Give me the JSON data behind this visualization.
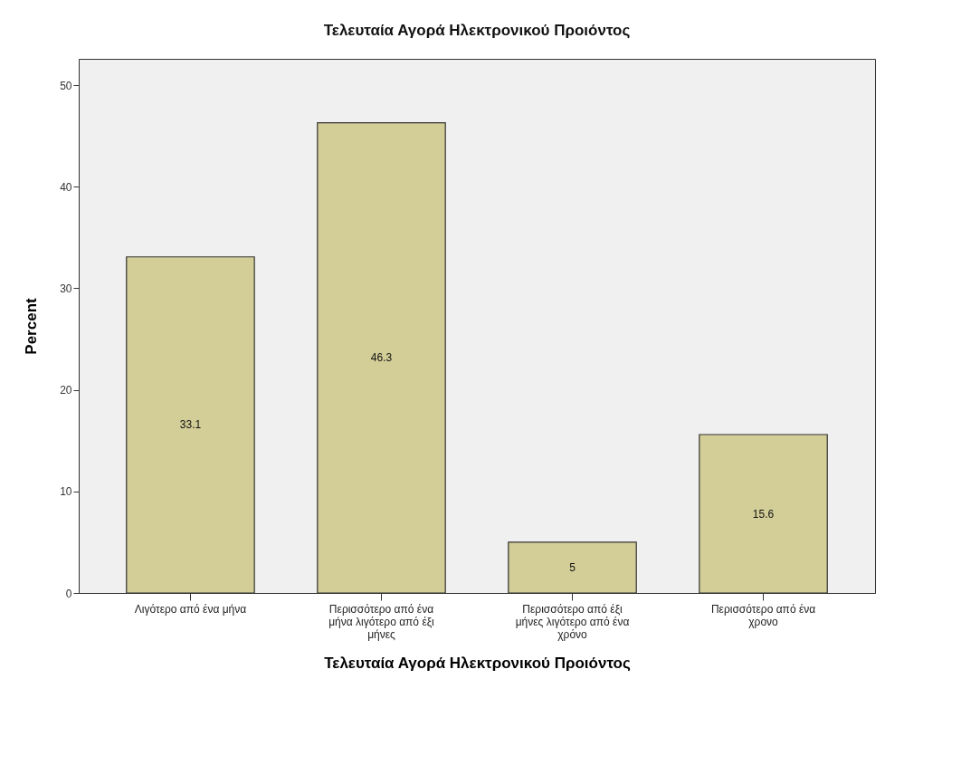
{
  "chart_data": {
    "type": "bar",
    "title": "Τελευταία Αγορά Ηλεκτρονικού Προιόντος",
    "xlabel": "Τελευταία Αγορά Ηλεκτρονικού Προιόντος",
    "ylabel": "Percent",
    "categories": [
      "Λιγότερο από ένα μήνα",
      "Περισσότερο από ένα μήνα λιγότερο από έξι μήνες",
      "Περισσότερο από έξι μήνες λιγότερο από ένα χρόνο",
      "Περισσότερο από ένα χρονο"
    ],
    "values": [
      33.1,
      46.3,
      5,
      15.6
    ],
    "color": "#d3ce97",
    "ylim": [
      0,
      52.6
    ],
    "yticks": [
      0,
      10,
      20,
      30,
      40,
      50
    ],
    "grid": false,
    "data_labels": true
  }
}
